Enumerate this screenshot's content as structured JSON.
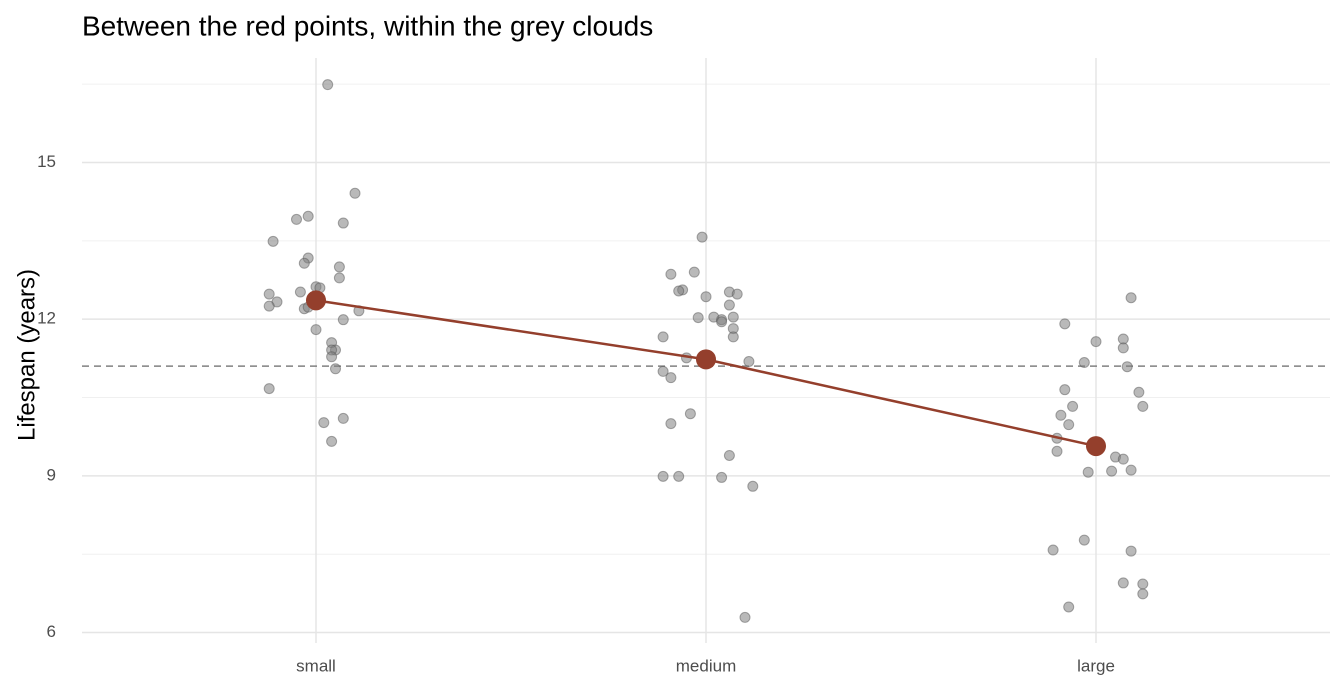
{
  "chart_data": {
    "type": "strip",
    "title": "Between the red points, within the grey clouds",
    "y_label": "Lifespan (years)",
    "categories": [
      "small",
      "medium",
      "large"
    ],
    "xlim": [
      0.4,
      3.6
    ],
    "ylim": [
      5.8,
      17
    ],
    "yticks": [
      6,
      9,
      12,
      15
    ],
    "yminor": [
      7.5,
      10.5,
      13.5,
      16.5
    ],
    "grid": true,
    "reference_line": 11.1,
    "series": [
      {
        "color": "#808080",
        "style": "points",
        "x": [
          1.03,
          1.1,
          0.98,
          0.95,
          1.07,
          0.89,
          0.98,
          0.97,
          1.06,
          1.06,
          0.96,
          0.88,
          0.9,
          0.88,
          1.0,
          1.01,
          0.97,
          0.98,
          1.11,
          1.07,
          1.0,
          1.04,
          1.05,
          1.04,
          1.04,
          1.05,
          0.88,
          1.07,
          1.02,
          1.04,
          1.99,
          1.91,
          1.97,
          1.94,
          1.93,
          2.0,
          2.06,
          2.08,
          2.06,
          1.98,
          2.02,
          2.04,
          2.04,
          2.07,
          2.07,
          2.07,
          1.89,
          1.95,
          2.11,
          1.89,
          1.91,
          1.96,
          1.91,
          2.06,
          1.89,
          1.93,
          2.04,
          2.12,
          2.1,
          3.09,
          2.92,
          3.0,
          3.07,
          3.07,
          2.97,
          3.08,
          2.92,
          3.11,
          2.94,
          3.12,
          2.91,
          2.93,
          2.9,
          2.9,
          3.05,
          3.07,
          3.09,
          3.04,
          2.98,
          2.97,
          2.89,
          3.09,
          3.07,
          3.12,
          3.12,
          2.93
        ],
        "values": [
          16.49,
          14.41,
          13.97,
          13.91,
          13.84,
          13.49,
          13.17,
          13.07,
          13.0,
          12.79,
          12.52,
          12.48,
          12.33,
          12.25,
          12.62,
          12.6,
          12.2,
          12.23,
          12.16,
          11.99,
          11.8,
          11.55,
          11.41,
          11.41,
          11.28,
          11.05,
          10.67,
          10.1,
          10.02,
          9.66,
          13.57,
          12.86,
          12.9,
          12.56,
          12.54,
          12.43,
          12.52,
          12.48,
          12.27,
          12.03,
          12.04,
          11.99,
          11.95,
          12.04,
          11.82,
          11.66,
          11.66,
          11.26,
          11.19,
          11.0,
          10.88,
          10.19,
          10.0,
          9.39,
          8.99,
          8.99,
          8.97,
          8.8,
          6.29,
          12.41,
          11.91,
          11.57,
          11.62,
          11.45,
          11.17,
          11.09,
          10.65,
          10.6,
          10.33,
          10.33,
          10.16,
          9.98,
          9.72,
          9.47,
          9.36,
          9.32,
          9.11,
          9.09,
          9.07,
          7.77,
          7.58,
          7.56,
          6.95,
          6.93,
          6.74,
          6.49
        ]
      },
      {
        "color": "#943f2c",
        "style": "means",
        "x": [
          1,
          2,
          3
        ],
        "values": [
          12.36,
          11.23,
          9.57
        ]
      }
    ]
  }
}
